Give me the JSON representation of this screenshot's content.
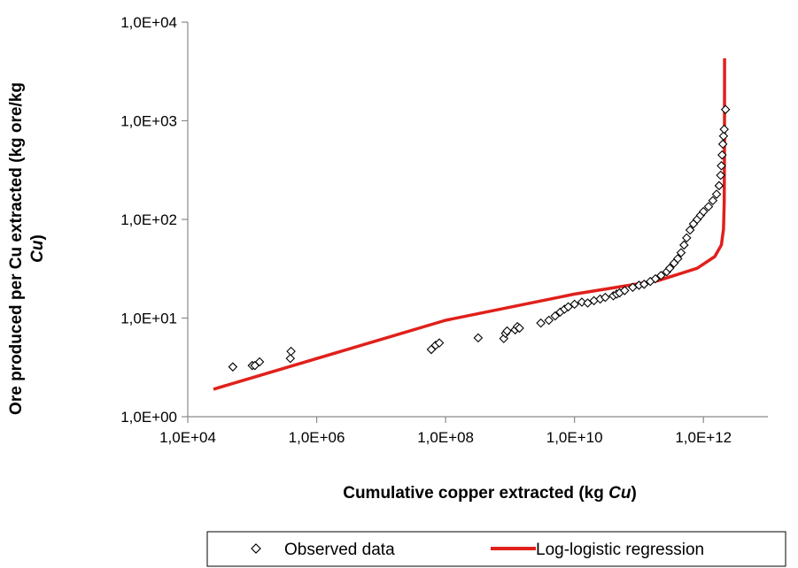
{
  "chart_data": {
    "type": "scatter",
    "x_scale": "log",
    "y_scale": "log",
    "xlim": [
      10000,
      10000000000000
    ],
    "ylim": [
      1,
      10000
    ],
    "x_ticks": [
      10000,
      1000000,
      100000000,
      10000000000,
      1000000000000
    ],
    "x_tick_labels": [
      "1,0E+04",
      "1,0E+06",
      "1,0E+08",
      "1,0E+10",
      "1,0E+12"
    ],
    "y_ticks": [
      1,
      10,
      100,
      1000,
      10000
    ],
    "y_tick_labels": [
      "1,0E+00",
      "1,0E+01",
      "1,0E+02",
      "1,0E+03",
      "1,0E+04"
    ],
    "xlabel": "Cumulative copper extracted (kg Cu)",
    "xlabel_parts": {
      "main": "Cumulative copper extracted (kg ",
      "italic": "Cu",
      "end": ")"
    },
    "ylabel": "Ore produced per Cu extracted (kg ore/kg Cu)",
    "ylabel_parts": {
      "line1": "Ore produced per Cu extracted (kg ore/kg",
      "line2_italic": "Cu",
      "line2_end": ")"
    },
    "grid": "none",
    "legend_position": "bottom",
    "legend": [
      {
        "name": "Observed data",
        "marker": "diamond-open",
        "color": "#000000"
      },
      {
        "name": "Log-logistic regression",
        "marker": "line",
        "color": "#e0201b"
      }
    ],
    "series": [
      {
        "name": "Observed data",
        "marker": "diamond-open",
        "color": "#000000",
        "points": [
          [
            50000,
            3.2
          ],
          [
            100000,
            3.3
          ],
          [
            110000,
            3.3
          ],
          [
            130000,
            3.6
          ],
          [
            390000,
            3.9
          ],
          [
            400000,
            4.6
          ],
          [
            60000000,
            4.8
          ],
          [
            70000000,
            5.3
          ],
          [
            80000000,
            5.6
          ],
          [
            320000000,
            6.3
          ],
          [
            800000000,
            6.2
          ],
          [
            850000000,
            7.0
          ],
          [
            900000000,
            7.4
          ],
          [
            1200000000,
            7.6
          ],
          [
            1300000000,
            8.2
          ],
          [
            1400000000,
            7.9
          ],
          [
            3000000000,
            8.9
          ],
          [
            4000000000,
            9.5
          ],
          [
            5000000000,
            10.5
          ],
          [
            6000000000,
            11.5
          ],
          [
            7000000000,
            12.3
          ],
          [
            8000000000,
            13.0
          ],
          [
            10000000000,
            13.8
          ],
          [
            13000000000,
            14.5
          ],
          [
            16000000000,
            14.2
          ],
          [
            20000000000,
            15.0
          ],
          [
            25000000000,
            15.6
          ],
          [
            30000000000,
            16.2
          ],
          [
            40000000000,
            16.8
          ],
          [
            45000000000,
            17.5
          ],
          [
            50000000000,
            18.0
          ],
          [
            60000000000,
            19.0
          ],
          [
            80000000000,
            20.5
          ],
          [
            100000000000,
            21.5
          ],
          [
            120000000000,
            22.0
          ],
          [
            150000000000,
            23.5
          ],
          [
            180000000000,
            25.0
          ],
          [
            220000000000,
            27.0
          ],
          [
            270000000000,
            29.5
          ],
          [
            300000000000,
            32.0
          ],
          [
            350000000000,
            36.0
          ],
          [
            400000000000,
            40.0
          ],
          [
            450000000000,
            46.0
          ],
          [
            500000000000,
            55.0
          ],
          [
            550000000000,
            65.0
          ],
          [
            620000000000,
            78.0
          ],
          [
            700000000000,
            90.0
          ],
          [
            800000000000,
            100.0
          ],
          [
            900000000000,
            110.0
          ],
          [
            1000000000000,
            120.0
          ],
          [
            1200000000000,
            135.0
          ],
          [
            1400000000000,
            155.0
          ],
          [
            1600000000000,
            180.0
          ],
          [
            1750000000000,
            220.0
          ],
          [
            1850000000000,
            280.0
          ],
          [
            1900000000000,
            350.0
          ],
          [
            1950000000000,
            450.0
          ],
          [
            2000000000000,
            580.0
          ],
          [
            2050000000000,
            700.0
          ],
          [
            2100000000000,
            820.0
          ],
          [
            2200000000000,
            1300.0
          ]
        ]
      },
      {
        "name": "Log-logistic regression",
        "type": "line",
        "color": "#e0201b",
        "points": [
          [
            25000,
            1.9
          ],
          [
            100000000,
            9.5
          ],
          [
            10000000000,
            17.5
          ],
          [
            200000000000,
            24.0
          ],
          [
            800000000000,
            32.0
          ],
          [
            1500000000000,
            42.0
          ],
          [
            1900000000000,
            55.0
          ],
          [
            2050000000000,
            80.0
          ],
          [
            2100000000000,
            150.0
          ],
          [
            2120000000000,
            600.0
          ],
          [
            2130000000000,
            4300.0
          ]
        ]
      }
    ]
  }
}
